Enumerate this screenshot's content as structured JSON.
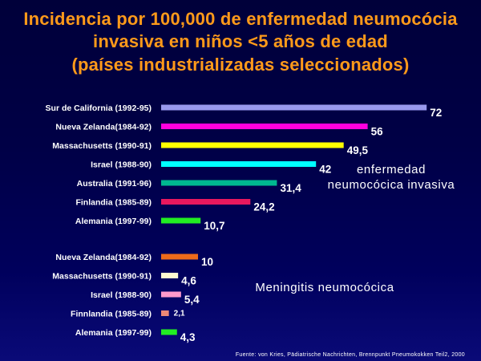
{
  "title": {
    "line1": "Incidencia por 100,000 de enfermedad neumocócia",
    "line2": "invasiva en niños <5 años de edad",
    "line3": "(países industrializadas seleccionados)"
  },
  "group_labels": {
    "invasive_line1": "enfermedad",
    "invasive_line2": "neumocócica invasiva",
    "meningitis": "Meningitis neumocócica"
  },
  "source": "Fuente: von Kries, Pädiatrische Nachrichten, Brennpunkt Pneumokokken Teil2, 2000",
  "chart_data": {
    "type": "bar",
    "orientation": "horizontal",
    "xlim": [
      0,
      75
    ],
    "grid": false,
    "series": [
      {
        "group": "enfermedad neumocócica invasiva",
        "items": [
          {
            "label": "Sur de California (1992-95)",
            "value": 72,
            "value_label": "72",
            "color": "#9999ee"
          },
          {
            "label": "Nueva Zelanda(1984-92)",
            "value": 56,
            "value_label": "56",
            "color": "#ff00dd"
          },
          {
            "label": "Massachusetts (1990-91)",
            "value": 49.5,
            "value_label": "49,5",
            "color": "#ffff00"
          },
          {
            "label": "Israel (1988-90)",
            "value": 42,
            "value_label": "42",
            "color": "#00ffff"
          },
          {
            "label": "Australia (1991-96)",
            "value": 31.4,
            "value_label": "31,4",
            "color": "#00b890"
          },
          {
            "label": "Finlandia (1985-89)",
            "value": 24.2,
            "value_label": "24,2",
            "color": "#e8185e"
          },
          {
            "label": "Alemania (1997-99)",
            "value": 10.7,
            "value_label": "10,7",
            "color": "#22ee22"
          }
        ]
      },
      {
        "group": "Meningitis neumocócica",
        "items": [
          {
            "label": "Nueva Zelanda(1984-92)",
            "value": 10,
            "value_label": "10",
            "color": "#ee6a1a"
          },
          {
            "label": "Massachusetts (1990-91)",
            "value": 4.6,
            "value_label": "4,6",
            "color": "#fffad0"
          },
          {
            "label": "Israel (1988-90)",
            "value": 5.4,
            "value_label": "5,4",
            "color": "#ff99cc"
          },
          {
            "label": "Finnlandia (1985-89)",
            "value": 2.1,
            "value_label": "2,1",
            "color": "#ee8877"
          },
          {
            "label": "Alemania (1997-99)",
            "value": 4.3,
            "value_label": "4,3",
            "color": "#22ee22"
          }
        ]
      }
    ]
  }
}
